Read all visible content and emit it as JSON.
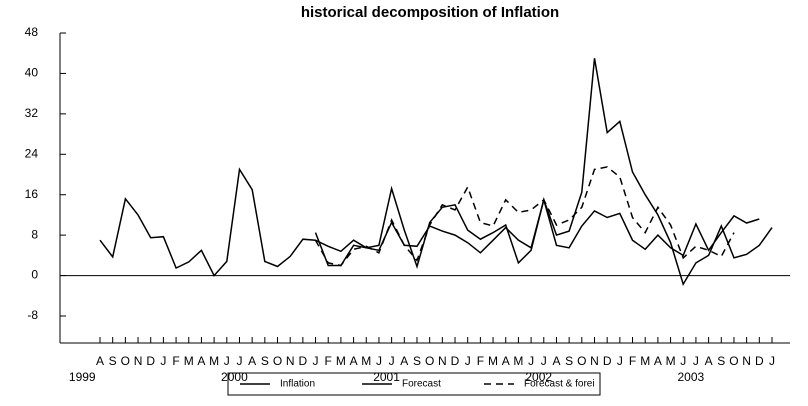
{
  "chart_data": {
    "type": "line",
    "title": "historical decomposition of Inflation",
    "categories": [
      "A",
      "S",
      "O",
      "N",
      "D",
      "J",
      "F",
      "M",
      "A",
      "M",
      "J",
      "J",
      "A",
      "S",
      "O",
      "N",
      "D",
      "J",
      "F",
      "M",
      "A",
      "M",
      "J",
      "J",
      "A",
      "S",
      "O",
      "N",
      "D",
      "J",
      "F",
      "M",
      "A",
      "M",
      "J",
      "J",
      "A",
      "S",
      "O",
      "N",
      "D",
      "J",
      "F",
      "M",
      "A",
      "M",
      "J",
      "J",
      "A",
      "S",
      "O",
      "N",
      "D",
      "J"
    ],
    "years": [
      "1999",
      "2000",
      "2001",
      "2002",
      "2003"
    ],
    "ylim": [
      -8,
      48
    ],
    "yticks": [
      -8,
      0,
      8,
      16,
      24,
      32,
      40,
      48
    ],
    "zero_line": true,
    "series": [
      {
        "name": "Inflation",
        "color": "#000000",
        "dash": false,
        "values": [
          7,
          3.7,
          15.2,
          12,
          7.5,
          7.7,
          1.5,
          2.7,
          5,
          0,
          2.8,
          21,
          17,
          2.8,
          1.8,
          3.8,
          7.2,
          7,
          5.8,
          4.8,
          7,
          5.5,
          6,
          17.2,
          9,
          1.8,
          10.5,
          13.5,
          14,
          9,
          7.2,
          8.5,
          10,
          2.5,
          5,
          15,
          8,
          8.8,
          16.5,
          43,
          28.3,
          30.5,
          20.5,
          16,
          12,
          6.5,
          -1.7,
          2.5,
          4,
          9.8,
          3.5,
          4.2,
          6,
          9.5
        ]
      },
      {
        "name": "Forecast",
        "color": "#000000",
        "dash": false,
        "values": [
          null,
          null,
          null,
          null,
          null,
          null,
          null,
          null,
          null,
          null,
          null,
          null,
          null,
          null,
          null,
          null,
          null,
          8.5,
          2,
          2,
          6,
          5.5,
          5,
          10.5,
          6,
          5.8,
          9.8,
          8.8,
          8,
          6.5,
          4.5,
          7,
          9.5,
          7,
          5.5,
          15,
          6,
          5.5,
          9.8,
          12.8,
          11.5,
          12.3,
          7,
          5.2,
          8,
          5.5,
          4,
          10.2,
          5,
          8.5,
          11.8,
          10.4,
          11.2,
          null
        ]
      },
      {
        "name": "Forecast & forei",
        "color": "#000000",
        "dash": true,
        "values": [
          null,
          null,
          null,
          null,
          null,
          null,
          null,
          null,
          null,
          null,
          null,
          null,
          null,
          null,
          null,
          null,
          null,
          7,
          2.5,
          2,
          5.2,
          5.8,
          4.5,
          11,
          6,
          3,
          10,
          14,
          13,
          17.5,
          10.5,
          9.8,
          15,
          12.5,
          13,
          15,
          10,
          11,
          13.5,
          21,
          21.5,
          19.5,
          11.5,
          8.5,
          13.5,
          10,
          3.5,
          5.8,
          5,
          3.8,
          8.5,
          null,
          null,
          null
        ]
      }
    ]
  }
}
